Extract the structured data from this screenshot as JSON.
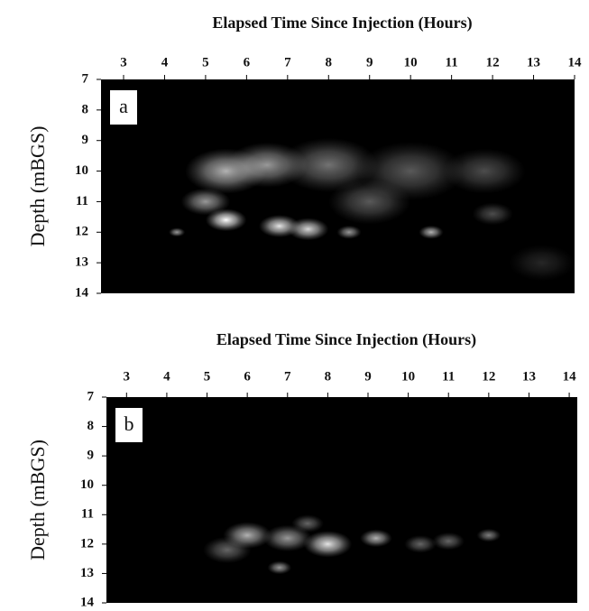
{
  "chart_data": [
    {
      "type": "heatmap-blobs",
      "label": "a",
      "title": "Elapsed Time Since Injection (Hours)",
      "y_label": "Depth (mBGS)",
      "xlim": [
        2.45,
        14
      ],
      "ylim": [
        14,
        7
      ],
      "xticks": [
        3,
        4,
        5,
        6,
        7,
        8,
        9,
        10,
        11,
        12,
        13,
        14
      ],
      "yticks": [
        7,
        8,
        9,
        10,
        11,
        12,
        13,
        14
      ],
      "x": [
        5.5,
        6.5,
        8,
        10,
        11.8,
        5.5,
        6.8,
        7.5,
        5.0,
        9,
        10.5,
        8.5,
        4.3,
        12,
        13.2
      ],
      "y": [
        10,
        9.8,
        9.8,
        10,
        10,
        11.6,
        11.8,
        11.9,
        11,
        11,
        12,
        12,
        12,
        11.4,
        13
      ],
      "size": [
        1.0,
        1.0,
        1.2,
        1.3,
        1.0,
        0.5,
        0.5,
        0.5,
        0.6,
        1.0,
        0.3,
        0.3,
        0.2,
        0.5,
        0.8
      ],
      "intensity": [
        0.7,
        0.6,
        0.45,
        0.35,
        0.3,
        1.0,
        0.9,
        0.85,
        0.6,
        0.35,
        0.7,
        0.6,
        0.6,
        0.3,
        0.15
      ]
    },
    {
      "type": "heatmap-blobs",
      "label": "b",
      "title": "Elapsed Time Since Injection (Hours)",
      "y_label": "Depth (mBGS)",
      "xlim": [
        2.5,
        14.2
      ],
      "ylim": [
        14,
        7
      ],
      "xticks": [
        3,
        4,
        5,
        6,
        7,
        8,
        9,
        10,
        11,
        12,
        13,
        14
      ],
      "yticks": [
        7,
        8,
        9,
        10,
        11,
        12,
        13,
        14
      ],
      "x": [
        6,
        7,
        8,
        9.2,
        10.3,
        11,
        12,
        6.8,
        7.5,
        5.5
      ],
      "y": [
        11.7,
        11.8,
        12,
        11.8,
        12,
        11.9,
        11.7,
        12.8,
        11.3,
        12.2
      ],
      "size": [
        0.6,
        0.6,
        0.6,
        0.4,
        0.4,
        0.4,
        0.3,
        0.3,
        0.4,
        0.6
      ],
      "intensity": [
        0.7,
        0.6,
        0.9,
        0.7,
        0.4,
        0.4,
        0.5,
        0.6,
        0.4,
        0.4
      ]
    }
  ]
}
